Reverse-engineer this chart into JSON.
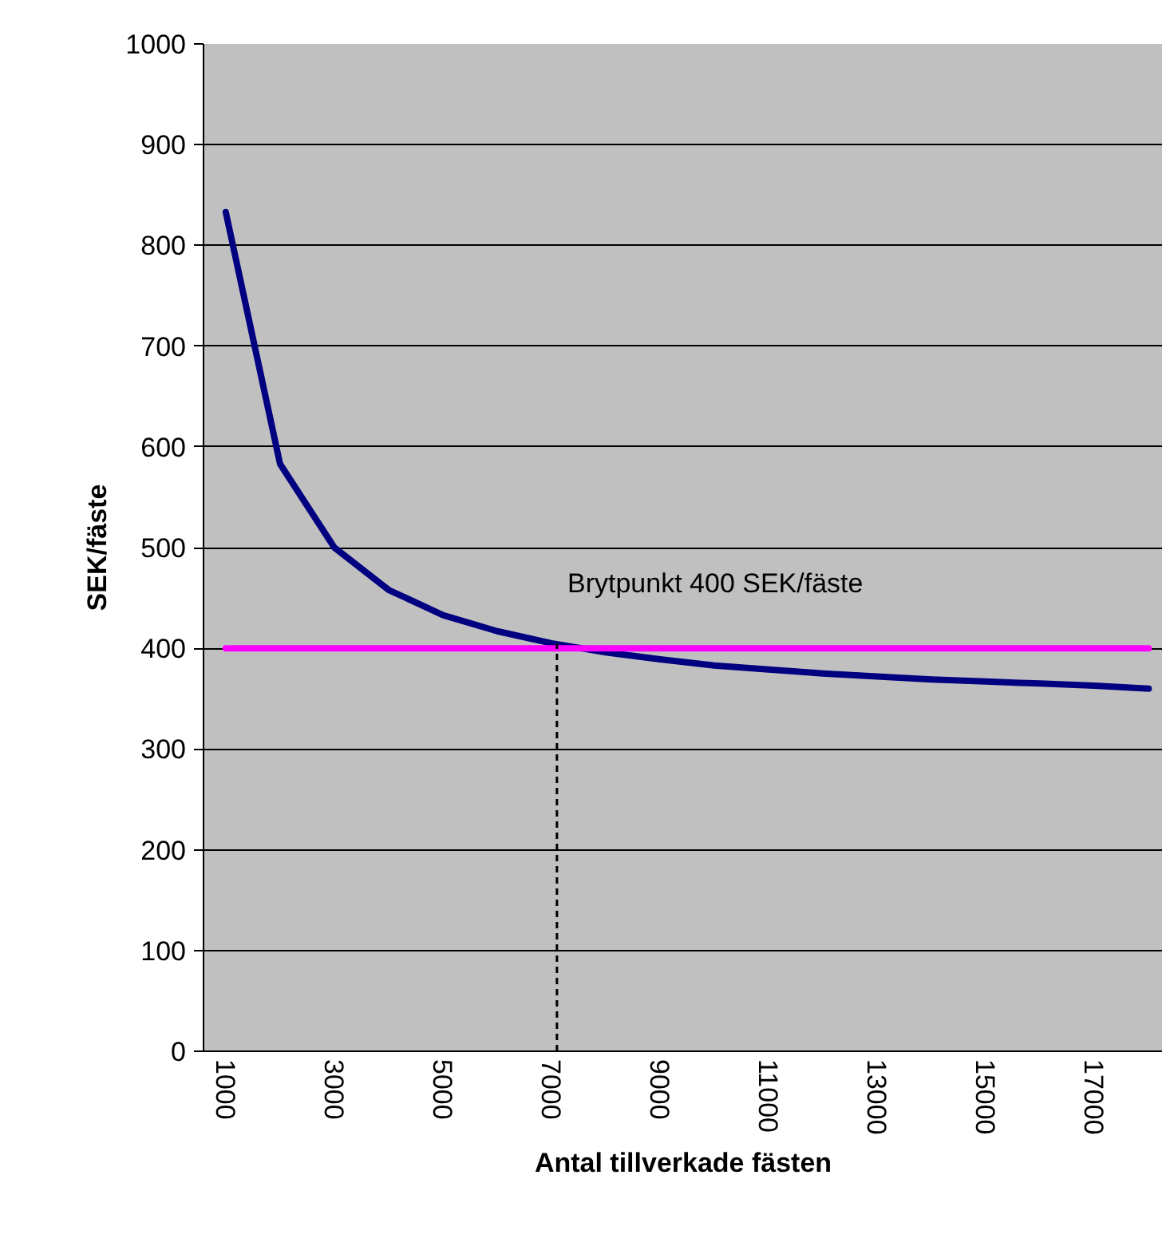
{
  "chart_data": {
    "type": "line",
    "xlabel": "Antal tillverkade fästen",
    "ylabel": "SEK/fäste",
    "x": [
      1000,
      2000,
      3000,
      4000,
      5000,
      6000,
      7000,
      8000,
      9000,
      10000,
      11000,
      12000,
      13000,
      14000,
      15000,
      16000,
      17000,
      18000
    ],
    "series": [
      {
        "color": "#000080",
        "values": [
          833,
          583,
          500,
          458,
          433,
          417,
          405,
          396,
          389,
          383,
          379,
          375,
          372,
          369,
          367,
          365,
          363,
          360
        ]
      },
      {
        "color": "#ff00ff",
        "values": [
          400,
          400,
          400,
          400,
          400,
          400,
          400,
          400,
          400,
          400,
          400,
          400,
          400,
          400,
          400,
          400,
          400,
          400
        ]
      }
    ],
    "xlim": [
      590,
      18260
    ],
    "xticks": [
      1000,
      3000,
      5000,
      7000,
      9000,
      11000,
      13000,
      15000,
      17000
    ],
    "ylim": [
      0,
      1000
    ],
    "yticks": [
      0,
      100,
      200,
      300,
      400,
      500,
      600,
      700,
      800,
      900,
      1000
    ],
    "grid": "y",
    "marker": "none",
    "line_style": "solid",
    "ref_lines": [
      {
        "axis": "x",
        "value": 7100,
        "label": null,
        "color": "#000000",
        "line_style": "dashed"
      }
    ],
    "annotations": [
      "Brytpunkt 400 SEK/fäste"
    ]
  }
}
